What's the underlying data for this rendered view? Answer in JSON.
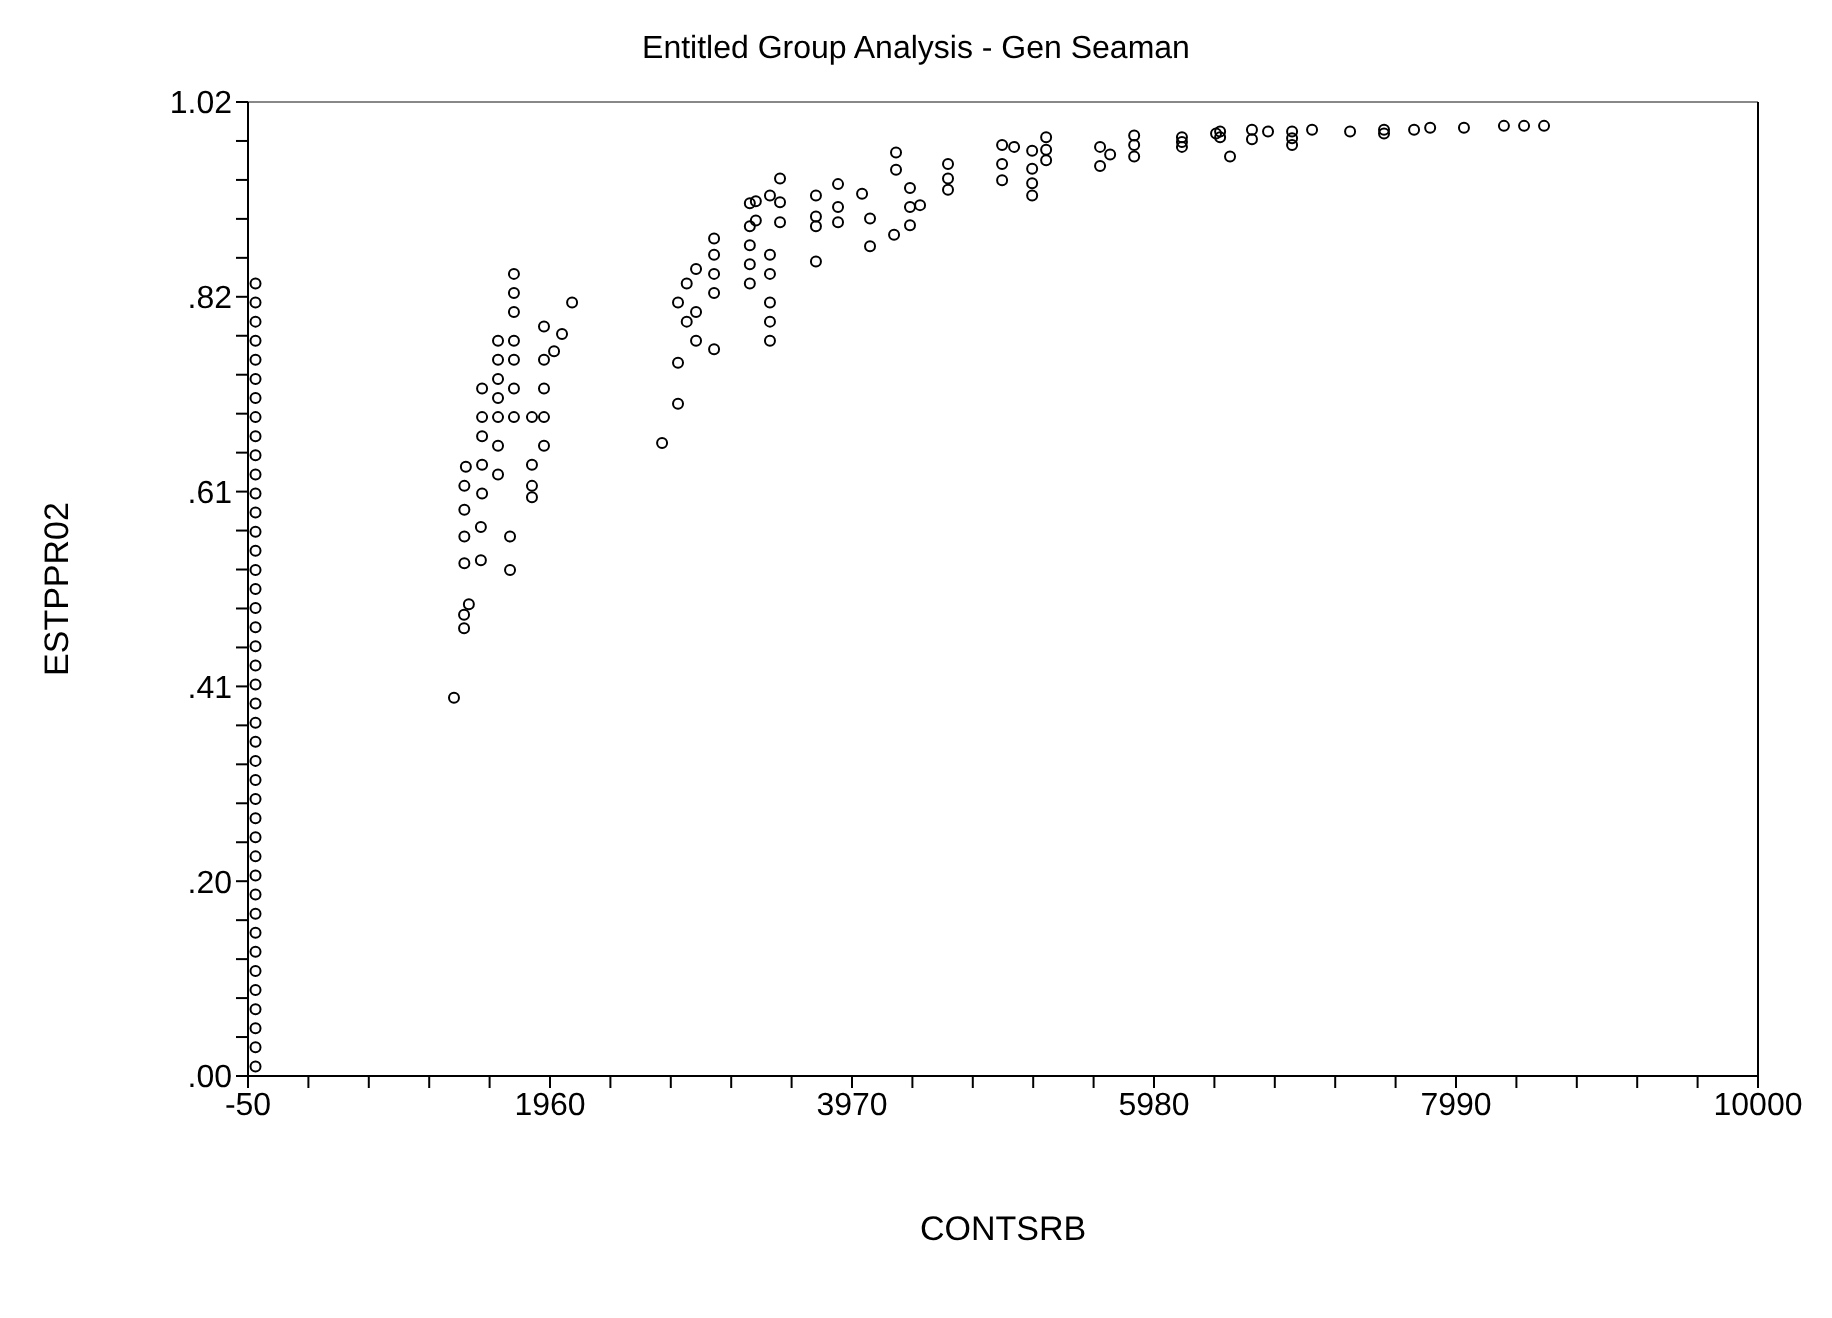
{
  "chart_data": {
    "type": "scatter",
    "title": "Entitled Group Analysis - Gen Seaman",
    "xlabel": "CONTSRB",
    "ylabel": "ESTPPR02",
    "marker": "circle",
    "xlim": [
      -50,
      10000
    ],
    "ylim": [
      0,
      1.02
    ],
    "xticks": [
      -50,
      {
        "value": 352,
        "label": null
      },
      {
        "value": 754,
        "label": null
      },
      {
        "value": 1156,
        "label": null
      },
      {
        "value": 1558,
        "label": null
      },
      1960,
      {
        "value": 2362,
        "label": null
      },
      {
        "value": 2764,
        "label": null
      },
      {
        "value": 3166,
        "label": null
      },
      {
        "value": 3568,
        "label": null
      },
      3970,
      {
        "value": 4372,
        "label": null
      },
      {
        "value": 4774,
        "label": null
      },
      {
        "value": 5176,
        "label": null
      },
      {
        "value": 5578,
        "label": null
      },
      5980,
      {
        "value": 6382,
        "label": null
      },
      {
        "value": 6784,
        "label": null
      },
      {
        "value": 7186,
        "label": null
      },
      {
        "value": 7588,
        "label": null
      },
      7990,
      {
        "value": 8392,
        "label": null
      },
      {
        "value": 8794,
        "label": null
      },
      {
        "value": 9196,
        "label": null
      },
      {
        "value": 9598,
        "label": null
      },
      10000
    ],
    "yticks": [
      {
        "value": 0,
        "label": ".00"
      },
      {
        "value": 0.0408,
        "label": null
      },
      {
        "value": 0.0816,
        "label": null
      },
      {
        "value": 0.1224,
        "label": null
      },
      {
        "value": 0.1632,
        "label": null
      },
      {
        "value": 0.204,
        "label": ".20"
      },
      {
        "value": 0.2448,
        "label": null
      },
      {
        "value": 0.2856,
        "label": null
      },
      {
        "value": 0.3264,
        "label": null
      },
      {
        "value": 0.3672,
        "label": null
      },
      {
        "value": 0.408,
        "label": ".41"
      },
      {
        "value": 0.4488,
        "label": null
      },
      {
        "value": 0.4896,
        "label": null
      },
      {
        "value": 0.5304,
        "label": null
      },
      {
        "value": 0.5712,
        "label": null
      },
      {
        "value": 0.612,
        "label": ".61"
      },
      {
        "value": 0.6528,
        "label": null
      },
      {
        "value": 0.6936,
        "label": null
      },
      {
        "value": 0.7344,
        "label": null
      },
      {
        "value": 0.7752,
        "label": null
      },
      {
        "value": 0.816,
        "label": ".82"
      },
      {
        "value": 0.8568,
        "label": null
      },
      {
        "value": 0.8976,
        "label": null
      },
      {
        "value": 0.9384,
        "label": null
      },
      {
        "value": 0.9792,
        "label": null
      },
      {
        "value": 1.02,
        "label": "1.02"
      }
    ],
    "series": [
      {
        "color": "#000000",
        "x": [
          0,
          0,
          0,
          0,
          0,
          0,
          0,
          0,
          0,
          0,
          0,
          0,
          0,
          0,
          0,
          0,
          0,
          0,
          0,
          0,
          0,
          0,
          0,
          0,
          0,
          0,
          0,
          0,
          0,
          0,
          0,
          0,
          0,
          0,
          0,
          0,
          0,
          0,
          0,
          0,
          0,
          0,
          1321,
          1388,
          1388,
          1420,
          1390,
          1500,
          1390,
          1500,
          1390,
          1508,
          1508,
          1508,
          1508,
          1508,
          1400,
          1390,
          1614,
          1614,
          1614,
          1614,
          1614,
          1614,
          1614,
          1694,
          1694,
          1720,
          1720,
          1720,
          1720,
          1720,
          1720,
          1720,
          1840,
          1840,
          1840,
          1840,
          1920,
          1920,
          1920,
          1920,
          1920,
          2040,
          1987,
          2107,
          2706,
          2812,
          2812,
          2812,
          2870,
          2932,
          2932,
          2870,
          2932,
          3052,
          3052,
          3052,
          3052,
          3052,
          3290,
          3290,
          3290,
          3290,
          3290,
          3330,
          3330,
          3424,
          3424,
          3424,
          3424,
          3424,
          3424,
          3491,
          3491,
          3491,
          3730,
          3730,
          3730,
          3730,
          3877,
          3877,
          3877,
          4037,
          4090,
          4090,
          4250,
          4263,
          4263,
          4356,
          4356,
          4356,
          4423,
          4609,
          4609,
          4609,
          4969,
          4969,
          4969,
          5049,
          5169,
          5169,
          5169,
          5169,
          5262,
          5262,
          5262,
          5621,
          5621,
          5688,
          5848,
          5848,
          5848,
          6166,
          6166,
          6166,
          6393,
          6420,
          6420,
          6486,
          6632,
          6632,
          6739,
          6899,
          6899,
          6899,
          7032,
          7285,
          7511,
          7511,
          7711,
          7818,
          8043,
          8309,
          8443,
          8576
        ],
        "values": [
          0.01,
          0.03,
          0.05,
          0.07,
          0.09,
          0.11,
          0.13,
          0.15,
          0.17,
          0.19,
          0.21,
          0.23,
          0.25,
          0.27,
          0.29,
          0.31,
          0.33,
          0.35,
          0.37,
          0.39,
          0.41,
          0.43,
          0.45,
          0.47,
          0.49,
          0.51,
          0.53,
          0.55,
          0.57,
          0.59,
          0.61,
          0.63,
          0.65,
          0.67,
          0.69,
          0.71,
          0.73,
          0.75,
          0.77,
          0.79,
          0.81,
          0.83,
          0.396,
          0.469,
          0.483,
          0.494,
          0.537,
          0.54,
          0.565,
          0.575,
          0.593,
          0.61,
          0.64,
          0.67,
          0.69,
          0.72,
          0.638,
          0.618,
          0.63,
          0.66,
          0.69,
          0.71,
          0.73,
          0.75,
          0.77,
          0.565,
          0.53,
          0.8,
          0.82,
          0.84,
          0.69,
          0.72,
          0.75,
          0.77,
          0.69,
          0.64,
          0.618,
          0.606,
          0.66,
          0.69,
          0.72,
          0.75,
          0.785,
          0.777,
          0.759,
          0.81,
          0.663,
          0.704,
          0.747,
          0.81,
          0.79,
          0.77,
          0.8,
          0.83,
          0.845,
          0.82,
          0.84,
          0.86,
          0.877,
          0.761,
          0.83,
          0.85,
          0.87,
          0.89,
          0.914,
          0.916,
          0.896,
          0.77,
          0.79,
          0.81,
          0.84,
          0.86,
          0.922,
          0.94,
          0.915,
          0.894,
          0.922,
          0.853,
          0.9,
          0.89,
          0.934,
          0.91,
          0.894,
          0.924,
          0.898,
          0.869,
          0.881,
          0.967,
          0.949,
          0.93,
          0.91,
          0.891,
          0.912,
          0.955,
          0.94,
          0.928,
          0.975,
          0.955,
          0.938,
          0.973,
          0.969,
          0.95,
          0.935,
          0.922,
          0.983,
          0.97,
          0.959,
          0.973,
          0.953,
          0.965,
          0.985,
          0.975,
          0.963,
          0.983,
          0.978,
          0.973,
          0.987,
          0.989,
          0.983,
          0.963,
          0.991,
          0.981,
          0.989,
          0.989,
          0.982,
          0.975,
          0.991,
          0.989,
          0.991,
          0.987,
          0.991,
          0.993,
          0.993,
          0.995,
          0.995,
          0.995
        ]
      }
    ]
  }
}
